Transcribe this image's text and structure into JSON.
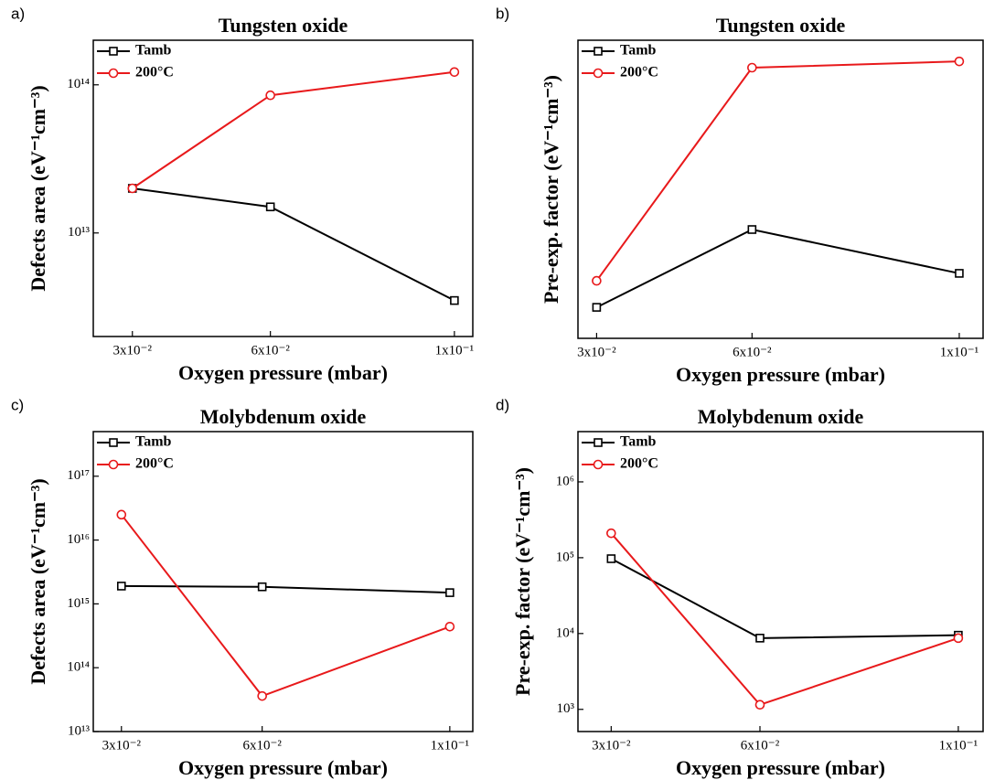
{
  "chart_data": [
    {
      "type": "line",
      "panel_label": "a)",
      "title": "Tungsten oxide",
      "xlabel": "Oxygen pressure (mbar)",
      "ylabel": "Defects area (eV⁻¹cm⁻³)",
      "x": [
        0.03,
        0.06,
        0.1
      ],
      "xlim": [
        0.0215,
        0.104
      ],
      "xticks": [
        {
          "value": 0.03,
          "label": "3x10⁻²"
        },
        {
          "value": 0.06,
          "label": "6x10⁻²"
        },
        {
          "value": 0.1,
          "label": "1x10⁻¹"
        }
      ],
      "yscale": "log",
      "ylim": [
        2000000000000.0,
        200000000000000.0
      ],
      "yticks": [
        {
          "value": 10000000000000.0,
          "label": "10¹³"
        },
        {
          "value": 100000000000000.0,
          "label": "10¹⁴"
        }
      ],
      "series": [
        {
          "name": "Tamb",
          "color": "#000000",
          "marker": "square",
          "values": [
            20000000000000.0,
            15000000000000.0,
            3500000000000.0
          ]
        },
        {
          "name": "200°C",
          "color": "#e8191b",
          "marker": "circle",
          "values": [
            20000000000000.0,
            85000000000000.0,
            122000000000000.0
          ]
        }
      ]
    },
    {
      "type": "line",
      "panel_label": "b)",
      "title": "Tungsten oxide",
      "xlabel": "Oxygen pressure (mbar)",
      "ylabel": "Pre-exp. factor (eV⁻¹cm⁻³)",
      "x": [
        0.03,
        0.06,
        0.1
      ],
      "xlim": [
        0.0264,
        0.1046
      ],
      "xticks": [
        {
          "value": 0.03,
          "label": "3x10⁻²"
        },
        {
          "value": 0.06,
          "label": "6x10⁻²"
        },
        {
          "value": 0.1,
          "label": "1x10⁻¹"
        }
      ],
      "yscale": "linear",
      "ylim": [
        0,
        1
      ],
      "series": [
        {
          "name": "Tamb",
          "color": "#000000",
          "marker": "square",
          "values": [
            0.104,
            0.365,
            0.218
          ]
        },
        {
          "name": "200°C",
          "color": "#e8191b",
          "marker": "circle",
          "values": [
            0.193,
            0.908,
            0.929
          ]
        }
      ]
    },
    {
      "type": "line",
      "panel_label": "c)",
      "title": "Molybdenum oxide",
      "xlabel": "Oxygen pressure (mbar)",
      "ylabel": "Defects area (eV⁻¹cm⁻³)",
      "x": [
        0.03,
        0.06,
        0.1
      ],
      "xlim": [
        0.024,
        0.1049
      ],
      "xticks": [
        {
          "value": 0.03,
          "label": "3x10⁻²"
        },
        {
          "value": 0.06,
          "label": "6x10⁻²"
        },
        {
          "value": 0.1,
          "label": "1x10⁻¹"
        }
      ],
      "yscale": "log",
      "ylim": [
        10000000000000.0,
        5e+17
      ],
      "yticks": [
        {
          "value": 10000000000000.0,
          "label": "10¹³"
        },
        {
          "value": 100000000000000.0,
          "label": "10¹⁴"
        },
        {
          "value": 1000000000000000.0,
          "label": "10¹⁵"
        },
        {
          "value": 1e+16,
          "label": "10¹⁶"
        },
        {
          "value": 1e+17,
          "label": "10¹⁷"
        }
      ],
      "series": [
        {
          "name": "Tamb",
          "color": "#000000",
          "marker": "square",
          "values": [
            1900000000000000.0,
            1850000000000000.0,
            1500000000000000.0
          ]
        },
        {
          "name": "200°C",
          "color": "#e8191b",
          "marker": "circle",
          "values": [
            2.5e+16,
            36000000000000.0,
            440000000000000.0
          ]
        }
      ]
    },
    {
      "type": "line",
      "panel_label": "d)",
      "title": "Molybdenum oxide",
      "xlabel": "Oxygen pressure (mbar)",
      "ylabel": "Pre-exp. factor (eV⁻¹cm⁻³)",
      "x": [
        0.03,
        0.06,
        0.1
      ],
      "xlim": [
        0.0233,
        0.105
      ],
      "xticks": [
        {
          "value": 0.03,
          "label": "3x10⁻²"
        },
        {
          "value": 0.06,
          "label": "6x10⁻²"
        },
        {
          "value": 0.1,
          "label": "1x10⁻¹"
        }
      ],
      "yscale": "log",
      "ylim": [
        510,
        4600000.0
      ],
      "yticks": [
        {
          "value": 1000,
          "label": "10³"
        },
        {
          "value": 10000,
          "label": "10⁴"
        },
        {
          "value": 100000,
          "label": "10⁵"
        },
        {
          "value": 1000000,
          "label": "10⁶"
        }
      ],
      "series": [
        {
          "name": "Tamb",
          "color": "#000000",
          "marker": "square",
          "values": [
            97000.0,
            8700.0,
            9500.0
          ]
        },
        {
          "name": "200°C",
          "color": "#e8191b",
          "marker": "circle",
          "values": [
            210000.0,
            1150,
            8700.0
          ]
        }
      ]
    }
  ]
}
